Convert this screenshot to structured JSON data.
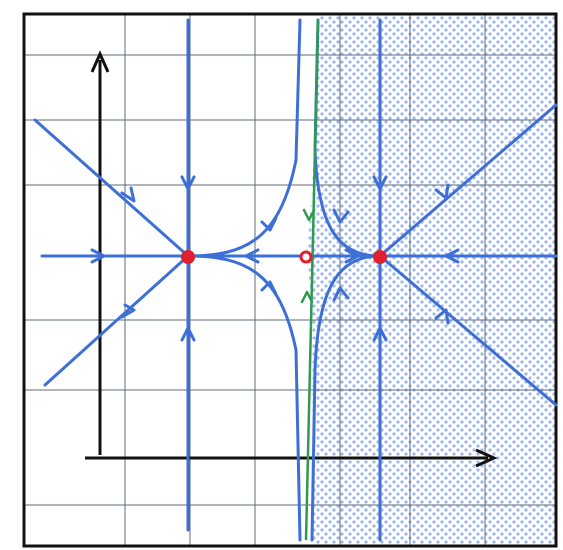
{
  "figure": {
    "kind": "phase-portrait",
    "text_labels": []
  },
  "colors": {
    "frame": "#111111",
    "grid": "#5d6b7c",
    "axis": "#111111",
    "trajectory": "#3d6fd6",
    "separatrix": "#2f9a4f",
    "node_fill": "#e0202e",
    "shade_dot": "#9fb8ea",
    "background": "#ffffff"
  },
  "equilibria": [
    {
      "name": "left-node",
      "type": "stable-node",
      "filled": true
    },
    {
      "name": "middle-point",
      "type": "open-circle",
      "filled": false
    },
    {
      "name": "right-node",
      "type": "stable-node",
      "filled": true
    }
  ],
  "regions": [
    {
      "name": "shaded-right-region",
      "pattern": "dotted"
    }
  ],
  "icons": {
    "x_axis_arrow": "arrowhead-right",
    "y_axis_arrow": "arrowhead-up"
  }
}
